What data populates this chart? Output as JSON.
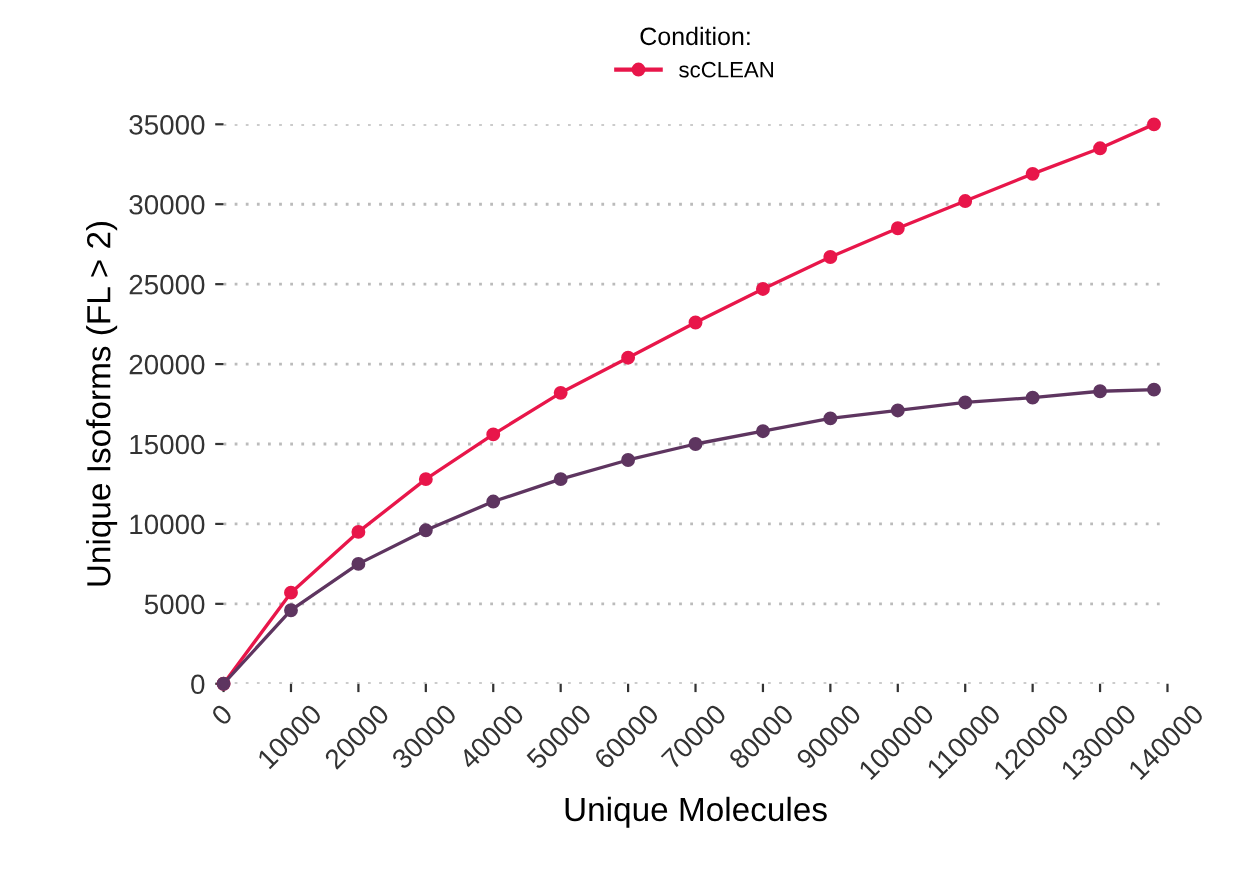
{
  "chart_data": {
    "type": "line",
    "xlabel": "Unique Molecules",
    "ylabel": "Unique Isoforms (FL > 2)",
    "legend_title": "Condition:",
    "legend": "top",
    "grid": "y",
    "marker": "circle",
    "line_style": "solid",
    "x": [
      0,
      10000,
      20000,
      30000,
      40000,
      50000,
      60000,
      70000,
      80000,
      90000,
      100000,
      110000,
      120000,
      130000,
      138000
    ],
    "xlim": [
      0,
      140000
    ],
    "ylim": [
      0,
      35000
    ],
    "xticks": [
      0,
      10000,
      20000,
      30000,
      40000,
      50000,
      60000,
      70000,
      80000,
      90000,
      100000,
      110000,
      120000,
      130000,
      140000
    ],
    "yticks": [
      0,
      5000,
      10000,
      15000,
      20000,
      25000,
      30000,
      35000
    ],
    "series": [
      {
        "name": "scCLEAN",
        "color": "#e8164a",
        "values": [
          0,
          5700,
          9500,
          12800,
          15600,
          18200,
          20400,
          22600,
          24700,
          26700,
          28500,
          30200,
          31900,
          33500,
          35000
        ]
      },
      {
        "color": "#5e3560",
        "values": [
          0,
          4600,
          7500,
          9600,
          11400,
          12800,
          14000,
          15000,
          15800,
          16600,
          17100,
          17600,
          17900,
          18300,
          18400
        ]
      }
    ]
  }
}
